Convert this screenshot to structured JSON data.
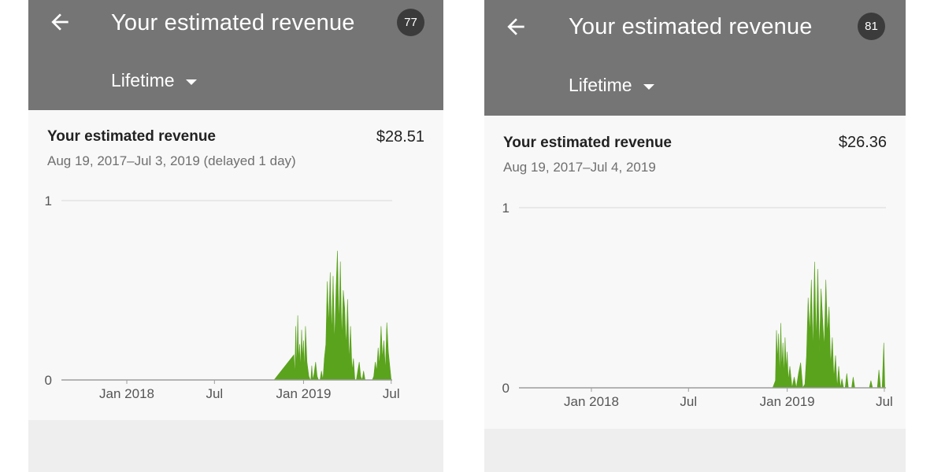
{
  "screens": [
    {
      "title": "Your estimated revenue",
      "badge": "77",
      "period": "Lifetime",
      "card": {
        "title": "Your estimated revenue",
        "value": "$28.51",
        "date_range": "Aug 19, 2017–Jul 3, 2019 (delayed 1 day)"
      },
      "chart_data": {
        "type": "area",
        "title": "",
        "xlabel": "",
        "ylabel": "",
        "ylim": [
          0,
          1
        ],
        "ytick_labels": [
          "0",
          "1"
        ],
        "xlim": [
          "2017-08-19",
          "2019-07-03"
        ],
        "xtick_labels": [
          "Jan 2018",
          "Jul",
          "Jan 2019",
          "Jul"
        ],
        "xtick_dates": [
          "2018-01-01",
          "2018-07-01",
          "2019-01-01",
          "2019-07-01"
        ],
        "grid": false,
        "color": "#5aa31c",
        "series": [
          {
            "x": [
              "2017-08-19",
              "2018-11-01",
              "2018-12-12",
              "2018-12-14",
              "2018-12-16",
              "2018-12-18",
              "2018-12-20",
              "2018-12-22",
              "2018-12-24",
              "2018-12-26",
              "2018-12-28",
              "2018-12-30",
              "2019-01-01",
              "2019-01-03",
              "2019-01-05",
              "2019-01-08",
              "2019-01-12",
              "2019-01-15",
              "2019-01-16",
              "2019-01-18",
              "2019-01-20",
              "2019-01-23",
              "2019-01-26",
              "2019-01-29",
              "2019-02-01",
              "2019-02-04",
              "2019-02-07",
              "2019-02-10",
              "2019-02-13",
              "2019-02-16",
              "2019-02-19",
              "2019-02-22",
              "2019-02-25",
              "2019-02-28",
              "2019-03-03",
              "2019-03-06",
              "2019-03-09",
              "2019-03-12",
              "2019-03-15",
              "2019-03-18",
              "2019-03-21",
              "2019-03-24",
              "2019-03-27",
              "2019-03-30",
              "2019-04-02",
              "2019-04-05",
              "2019-04-08",
              "2019-04-11",
              "2019-04-14",
              "2019-04-17",
              "2019-04-20",
              "2019-04-23",
              "2019-04-26",
              "2019-04-29",
              "2019-05-02",
              "2019-05-05",
              "2019-05-08",
              "2019-05-11",
              "2019-05-14",
              "2019-05-17",
              "2019-05-20",
              "2019-05-23",
              "2019-05-26",
              "2019-05-29",
              "2019-06-01",
              "2019-06-04",
              "2019-06-07",
              "2019-06-10",
              "2019-06-13",
              "2019-06-16",
              "2019-06-19",
              "2019-06-22",
              "2019-06-25",
              "2019-06-28",
              "2019-07-01",
              "2019-07-03"
            ],
            "values": [
              0,
              0,
              0.14,
              0.02,
              0.3,
              0.05,
              0.36,
              0.1,
              0.2,
              0.06,
              0.28,
              0.12,
              0.22,
              0.04,
              0.3,
              0.1,
              0.02,
              0,
              0,
              0.08,
              0,
              0.04,
              0.1,
              0.02,
              0,
              0,
              0.05,
              0,
              0.12,
              0.2,
              0.55,
              0.3,
              0.6,
              0.25,
              0.58,
              0.2,
              0.5,
              0.72,
              0.3,
              0.66,
              0.22,
              0.5,
              0.4,
              0.18,
              0.45,
              0.1,
              0.3,
              0.05,
              0.12,
              0,
              0,
              0.05,
              0.1,
              0.02,
              0,
              0.05,
              0,
              0,
              0,
              0,
              0,
              0,
              0.02,
              0.1,
              0.05,
              0.18,
              0.08,
              0.3,
              0.12,
              0.22,
              0.05,
              0.32,
              0.16,
              0.08,
              0,
              0
            ]
          }
        ]
      }
    },
    {
      "title": "Your estimated revenue",
      "badge": "81",
      "period": "Lifetime",
      "card": {
        "title": "Your estimated revenue",
        "value": "$26.36",
        "date_range": "Aug 19, 2017–Jul 4, 2019"
      },
      "chart_data": {
        "type": "area",
        "title": "",
        "xlabel": "",
        "ylabel": "",
        "ylim": [
          0,
          1
        ],
        "ytick_labels": [
          "0",
          "1"
        ],
        "xlim": [
          "2017-08-19",
          "2019-07-04"
        ],
        "xtick_labels": [
          "Jan 2018",
          "Jul",
          "Jan 2019",
          "Jul"
        ],
        "xtick_dates": [
          "2018-01-01",
          "2018-07-01",
          "2019-01-01",
          "2019-07-01"
        ],
        "grid": false,
        "color": "#5aa31c",
        "series": [
          {
            "x": [
              "2017-08-19",
              "2018-12-05",
              "2018-12-10",
              "2018-12-12",
              "2018-12-14",
              "2018-12-16",
              "2018-12-18",
              "2018-12-20",
              "2018-12-22",
              "2018-12-24",
              "2018-12-26",
              "2018-12-28",
              "2018-12-30",
              "2019-01-01",
              "2019-01-03",
              "2019-01-06",
              "2019-01-10",
              "2019-01-14",
              "2019-01-18",
              "2019-01-22",
              "2019-01-26",
              "2019-01-30",
              "2019-02-03",
              "2019-02-06",
              "2019-02-09",
              "2019-02-12",
              "2019-02-15",
              "2019-02-18",
              "2019-02-21",
              "2019-02-24",
              "2019-02-27",
              "2019-03-02",
              "2019-03-05",
              "2019-03-08",
              "2019-03-11",
              "2019-03-14",
              "2019-03-17",
              "2019-03-20",
              "2019-03-23",
              "2019-03-26",
              "2019-03-29",
              "2019-04-01",
              "2019-04-04",
              "2019-04-07",
              "2019-04-10",
              "2019-04-13",
              "2019-04-16",
              "2019-04-19",
              "2019-04-22",
              "2019-04-25",
              "2019-04-28",
              "2019-05-01",
              "2019-05-04",
              "2019-05-07",
              "2019-05-10",
              "2019-05-13",
              "2019-05-16",
              "2019-05-19",
              "2019-05-22",
              "2019-05-25",
              "2019-05-28",
              "2019-05-31",
              "2019-06-03",
              "2019-06-06",
              "2019-06-09",
              "2019-06-12",
              "2019-06-15",
              "2019-06-18",
              "2019-06-21",
              "2019-06-24",
              "2019-06-27",
              "2019-06-30",
              "2019-07-02",
              "2019-07-04"
            ],
            "values": [
              0,
              0,
              0.04,
              0.32,
              0.15,
              0.3,
              0.05,
              0.36,
              0.1,
              0.25,
              0.06,
              0.28,
              0.1,
              0.2,
              0.04,
              0.12,
              0,
              0.06,
              0,
              0.08,
              0.14,
              0,
              0.02,
              0.18,
              0.5,
              0.3,
              0.6,
              0.2,
              0.7,
              0.25,
              0.66,
              0.2,
              0.55,
              0.38,
              0.22,
              0.6,
              0.3,
              0.45,
              0.12,
              0.28,
              0.05,
              0.18,
              0,
              0.12,
              0,
              0.05,
              0,
              0,
              0.08,
              0,
              0,
              0,
              0.06,
              0,
              0,
              0,
              0,
              0,
              0,
              0,
              0,
              0,
              0,
              0.04,
              0,
              0,
              0,
              0,
              0.1,
              0,
              0,
              0.25,
              0,
              0
            ]
          }
        ]
      }
    }
  ]
}
